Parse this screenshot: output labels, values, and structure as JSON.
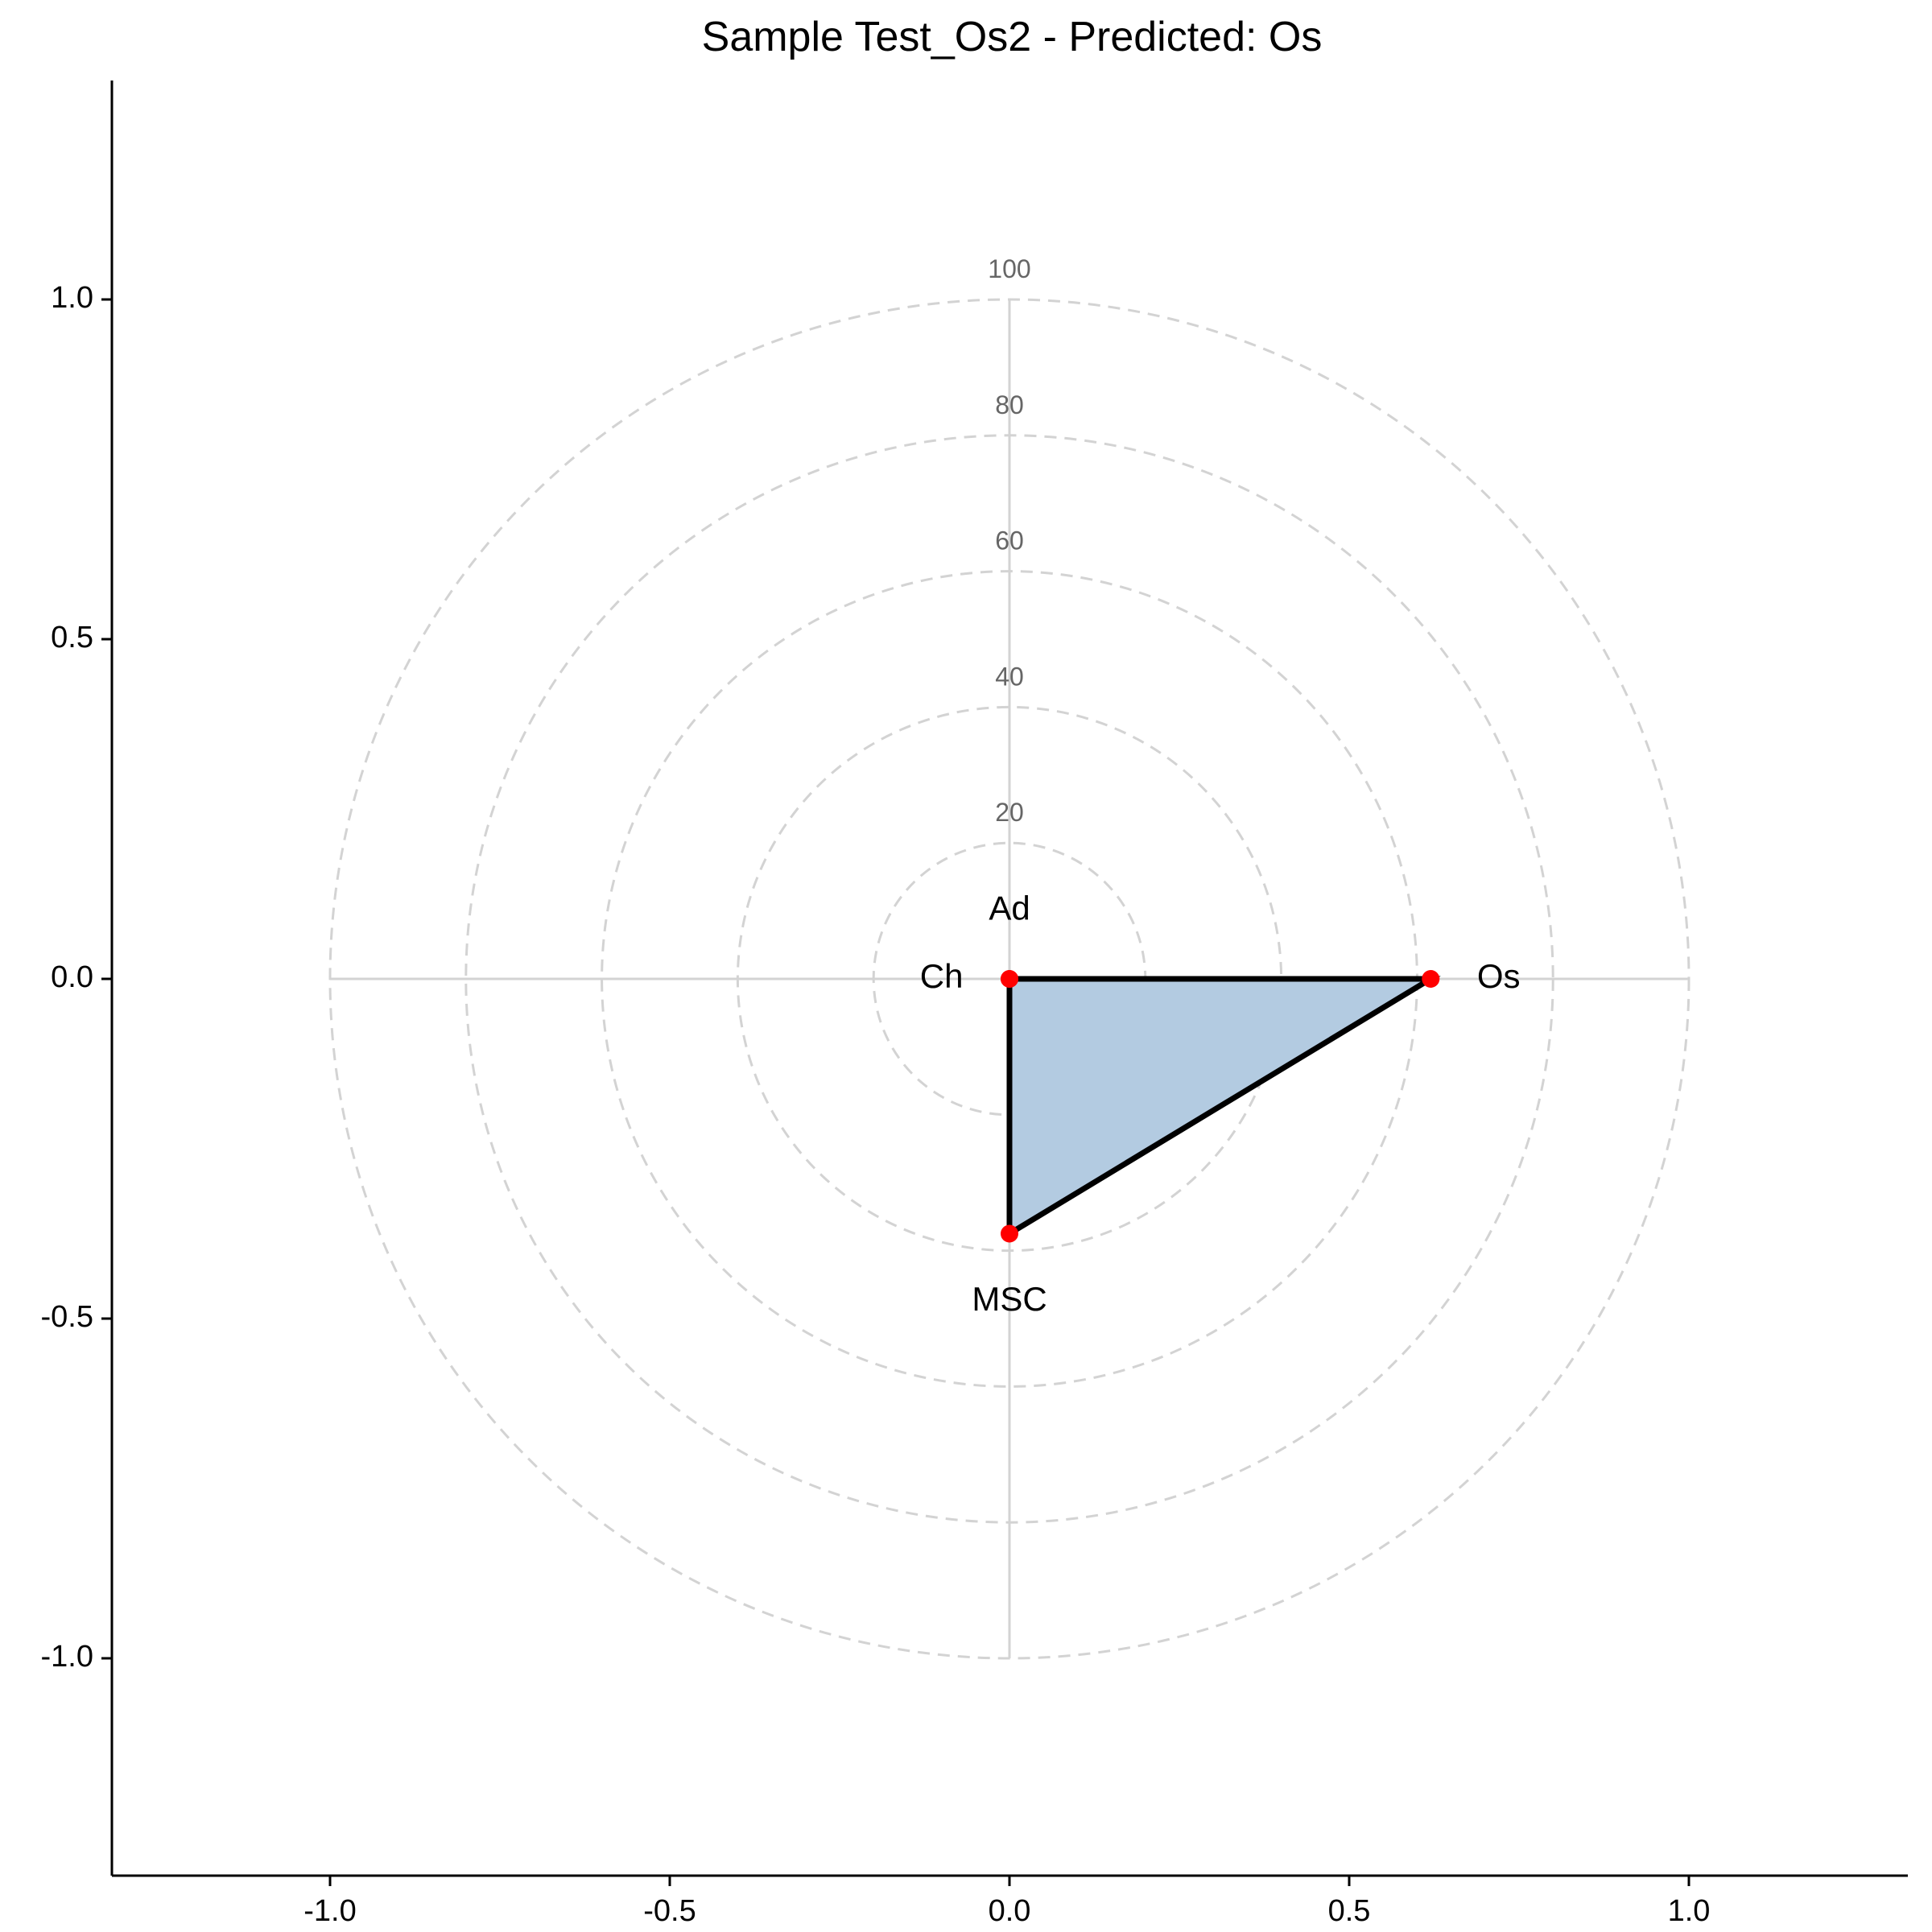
{
  "chart_data": {
    "type": "radar",
    "title": "Sample Test_Os2 - Predicted: Os",
    "xlabel": "",
    "ylabel": "",
    "xlim": [
      -1.32,
      1.32
    ],
    "ylim": [
      -1.32,
      1.32
    ],
    "x_ticks": [
      "-1.0",
      "-0.5",
      "0.0",
      "0.5",
      "1.0"
    ],
    "y_ticks": [
      "-1.0",
      "-0.5",
      "0.0",
      "0.5",
      "1.0"
    ],
    "x_tick_values": [
      -1.0,
      -0.5,
      0.0,
      0.5,
      1.0
    ],
    "y_tick_values": [
      -1.0,
      -0.5,
      0.0,
      0.5,
      1.0
    ],
    "ring_labels": [
      "20",
      "40",
      "60",
      "80",
      "100"
    ],
    "ring_values": [
      20,
      40,
      60,
      80,
      100
    ],
    "grid": false,
    "fill_color": "#b3cbe1",
    "point_color": "#ff0000",
    "grid_color": "#d3d3d3",
    "points": [
      {
        "label": "Os",
        "angle_deg": 0,
        "value": 62
      },
      {
        "label": "MSC",
        "angle_deg": 270,
        "value": 37.5
      },
      {
        "label": "Ad",
        "angle_deg": 90,
        "value": 0
      },
      {
        "label": "Ch",
        "angle_deg": 180,
        "value": 0
      }
    ]
  }
}
